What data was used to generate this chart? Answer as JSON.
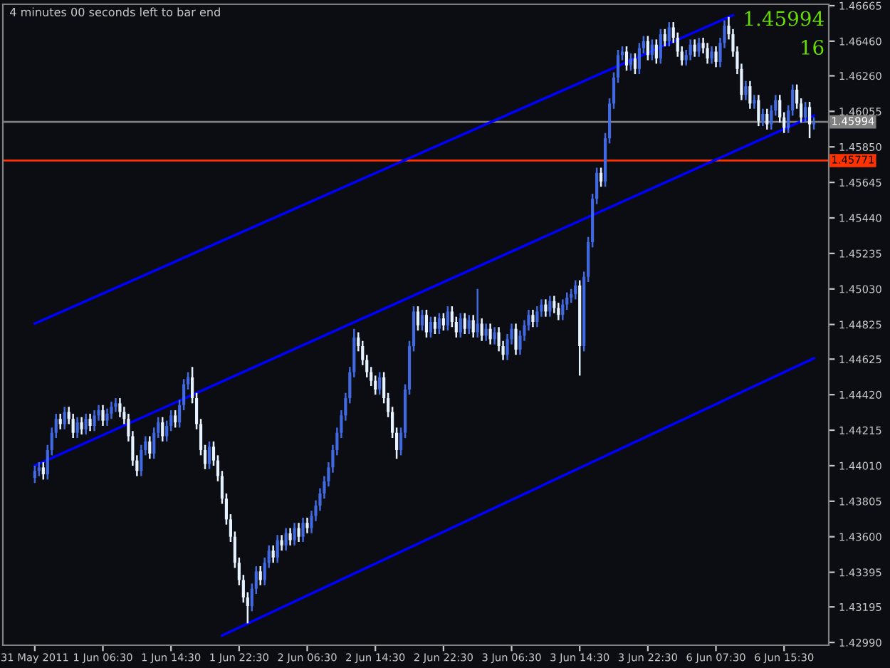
{
  "chart_data": {
    "type": "candlestick",
    "annotations": [
      "4 minutes 00 seconds left to bar end",
      "1.45994",
      "16"
    ],
    "categories": [
      "31 May 2011",
      null,
      null,
      null,
      null,
      null,
      null,
      null,
      null,
      null,
      null,
      null,
      null,
      null,
      null,
      null,
      "1 Jun 06:30",
      null,
      null,
      null,
      null,
      null,
      null,
      null,
      null,
      null,
      null,
      null,
      null,
      null,
      null,
      null,
      "1 Jun 14:30",
      null,
      null,
      null,
      null,
      null,
      null,
      null,
      null,
      null,
      null,
      null,
      null,
      null,
      null,
      null,
      "1 Jun 22:30",
      null,
      null,
      null,
      null,
      null,
      null,
      null,
      null,
      null,
      null,
      null,
      null,
      null,
      null,
      null,
      "2 Jun 06:30",
      null,
      null,
      null,
      null,
      null,
      null,
      null,
      null,
      null,
      null,
      null,
      null,
      null,
      null,
      null,
      "2 Jun 14:30",
      null,
      null,
      null,
      null,
      null,
      null,
      null,
      null,
      null,
      null,
      null,
      null,
      null,
      null,
      null,
      "2 Jun 22:30",
      null,
      null,
      null,
      null,
      null,
      null,
      null,
      null,
      null,
      null,
      null,
      null,
      null,
      null,
      null,
      "3 Jun 06:30",
      null,
      null,
      null,
      null,
      null,
      null,
      null,
      null,
      null,
      null,
      null,
      null,
      null,
      null,
      null,
      "3 Jun 14:30",
      null,
      null,
      null,
      null,
      null,
      null,
      null,
      null,
      null,
      null,
      null,
      null,
      null,
      null,
      null,
      "3 Jun 22:30",
      null,
      null,
      null,
      null,
      null,
      null,
      null,
      null,
      null,
      null,
      null,
      null,
      null,
      null,
      null,
      "6 Jun 07:30",
      null,
      null,
      null,
      null,
      null,
      null,
      null,
      null,
      null,
      null,
      null,
      null,
      null,
      null,
      null,
      "6 Jun 15:30",
      null,
      null,
      null,
      null,
      null,
      null,
      null
    ],
    "ohlc": [
      [
        1.4394,
        1.4401,
        1.4391,
        1.4398
      ],
      [
        1.4398,
        1.4403,
        1.4395,
        1.44
      ],
      [
        1.44,
        1.4403,
        1.4393,
        1.4396
      ],
      [
        1.4396,
        1.4413,
        1.4393,
        1.441
      ],
      [
        1.441,
        1.4423,
        1.4407,
        1.442
      ],
      [
        1.442,
        1.4431,
        1.4417,
        1.4428
      ],
      [
        1.4428,
        1.4431,
        1.4422,
        1.4425
      ],
      [
        1.4425,
        1.4435,
        1.4422,
        1.4432
      ],
      [
        1.4432,
        1.4435,
        1.4425,
        1.4428
      ],
      [
        1.4428,
        1.4431,
        1.4417,
        1.442
      ],
      [
        1.442,
        1.4429,
        1.4417,
        1.4426
      ],
      [
        1.4426,
        1.4429,
        1.4419,
        1.4422
      ],
      [
        1.4422,
        1.4431,
        1.4419,
        1.4428
      ],
      [
        1.4428,
        1.4431,
        1.4421,
        1.4424
      ],
      [
        1.4424,
        1.4433,
        1.4421,
        1.443
      ],
      [
        1.443,
        1.4436,
        1.4427,
        1.4433
      ],
      [
        1.4433,
        1.4436,
        1.4424,
        1.4427
      ],
      [
        1.4427,
        1.4434,
        1.4424,
        1.4431
      ],
      [
        1.4431,
        1.4438,
        1.4428,
        1.4435
      ],
      [
        1.4435,
        1.444,
        1.4432,
        1.4437
      ],
      [
        1.4437,
        1.444,
        1.4429,
        1.4432
      ],
      [
        1.4432,
        1.4435,
        1.4425,
        1.4428
      ],
      [
        1.4428,
        1.4431,
        1.4415,
        1.4418
      ],
      [
        1.4418,
        1.4421,
        1.4401,
        1.4404
      ],
      [
        1.4404,
        1.4407,
        1.4395,
        1.4398
      ],
      [
        1.4398,
        1.4413,
        1.4395,
        1.441
      ],
      [
        1.441,
        1.4418,
        1.4407,
        1.4415
      ],
      [
        1.4415,
        1.4418,
        1.4405,
        1.4408
      ],
      [
        1.4408,
        1.4423,
        1.4405,
        1.442
      ],
      [
        1.442,
        1.4429,
        1.4417,
        1.4426
      ],
      [
        1.4426,
        1.4429,
        1.4415,
        1.4418
      ],
      [
        1.4418,
        1.4427,
        1.4415,
        1.4424
      ],
      [
        1.4424,
        1.4433,
        1.4421,
        1.443
      ],
      [
        1.443,
        1.4433,
        1.4423,
        1.4426
      ],
      [
        1.4426,
        1.4439,
        1.4423,
        1.4436
      ],
      [
        1.4436,
        1.4451,
        1.4433,
        1.4448
      ],
      [
        1.4448,
        1.4455,
        1.4445,
        1.4452
      ],
      [
        1.4452,
        1.4458,
        1.4437,
        1.444
      ],
      [
        1.444,
        1.4443,
        1.4422,
        1.4425
      ],
      [
        1.4425,
        1.4428,
        1.4407,
        1.441
      ],
      [
        1.441,
        1.4413,
        1.4399,
        1.4402
      ],
      [
        1.4402,
        1.4415,
        1.4399,
        1.4412
      ],
      [
        1.4412,
        1.4415,
        1.4401,
        1.4404
      ],
      [
        1.4404,
        1.4407,
        1.4392,
        1.4395
      ],
      [
        1.4395,
        1.4398,
        1.4379,
        1.4382
      ],
      [
        1.4382,
        1.4385,
        1.4367,
        1.437
      ],
      [
        1.437,
        1.4373,
        1.4357,
        1.436
      ],
      [
        1.436,
        1.4363,
        1.4342,
        1.4345
      ],
      [
        1.4345,
        1.4348,
        1.4332,
        1.4335
      ],
      [
        1.4335,
        1.4338,
        1.4322,
        1.4325
      ],
      [
        1.4325,
        1.4328,
        1.431,
        1.432
      ],
      [
        1.432,
        1.4333,
        1.4317,
        1.433
      ],
      [
        1.433,
        1.4343,
        1.4327,
        1.434
      ],
      [
        1.434,
        1.4343,
        1.4332,
        1.4335
      ],
      [
        1.4335,
        1.4348,
        1.4332,
        1.4345
      ],
      [
        1.4345,
        1.4355,
        1.4342,
        1.4352
      ],
      [
        1.4352,
        1.4355,
        1.4345,
        1.4348
      ],
      [
        1.4348,
        1.4361,
        1.4345,
        1.4358
      ],
      [
        1.4358,
        1.4361,
        1.4352,
        1.4355
      ],
      [
        1.4355,
        1.4365,
        1.4352,
        1.4362
      ],
      [
        1.4362,
        1.4365,
        1.4355,
        1.4358
      ],
      [
        1.4358,
        1.4368,
        1.4355,
        1.4365
      ],
      [
        1.4365,
        1.4368,
        1.4357,
        1.436
      ],
      [
        1.436,
        1.4371,
        1.4357,
        1.4368
      ],
      [
        1.4368,
        1.4371,
        1.4362,
        1.4365
      ],
      [
        1.4365,
        1.4375,
        1.4362,
        1.4372
      ],
      [
        1.4372,
        1.4381,
        1.4369,
        1.4378
      ],
      [
        1.4378,
        1.4388,
        1.4375,
        1.4385
      ],
      [
        1.4385,
        1.4395,
        1.4382,
        1.4392
      ],
      [
        1.4392,
        1.4403,
        1.4389,
        1.44
      ],
      [
        1.44,
        1.4413,
        1.4397,
        1.441
      ],
      [
        1.441,
        1.4423,
        1.4407,
        1.442
      ],
      [
        1.442,
        1.4433,
        1.4417,
        1.443
      ],
      [
        1.443,
        1.4443,
        1.4427,
        1.444
      ],
      [
        1.444,
        1.4458,
        1.4437,
        1.4455
      ],
      [
        1.4455,
        1.448,
        1.4452,
        1.4475
      ],
      [
        1.4475,
        1.4478,
        1.4467,
        1.447
      ],
      [
        1.447,
        1.4473,
        1.4459,
        1.4462
      ],
      [
        1.4462,
        1.4465,
        1.4452,
        1.4455
      ],
      [
        1.4455,
        1.4458,
        1.4447,
        1.445
      ],
      [
        1.445,
        1.4453,
        1.4442,
        1.4445
      ],
      [
        1.4445,
        1.4455,
        1.4442,
        1.4452
      ],
      [
        1.4452,
        1.4455,
        1.4437,
        1.444
      ],
      [
        1.444,
        1.4443,
        1.4429,
        1.4432
      ],
      [
        1.4432,
        1.4435,
        1.4417,
        1.442
      ],
      [
        1.442,
        1.4423,
        1.4405,
        1.441
      ],
      [
        1.441,
        1.4423,
        1.4407,
        1.442
      ],
      [
        1.442,
        1.4448,
        1.4417,
        1.4445
      ],
      [
        1.4445,
        1.4473,
        1.4442,
        1.447
      ],
      [
        1.447,
        1.4493,
        1.4467,
        1.449
      ],
      [
        1.449,
        1.4493,
        1.4479,
        1.4482
      ],
      [
        1.4482,
        1.4491,
        1.4479,
        1.4488
      ],
      [
        1.4488,
        1.4491,
        1.4475,
        1.4478
      ],
      [
        1.4478,
        1.4487,
        1.4475,
        1.4484
      ],
      [
        1.4484,
        1.4487,
        1.4477,
        1.448
      ],
      [
        1.448,
        1.4489,
        1.4477,
        1.4486
      ],
      [
        1.4486,
        1.4489,
        1.4479,
        1.4482
      ],
      [
        1.4482,
        1.4493,
        1.4479,
        1.449
      ],
      [
        1.449,
        1.4493,
        1.4481,
        1.4484
      ],
      [
        1.4484,
        1.4487,
        1.4475,
        1.4478
      ],
      [
        1.4478,
        1.4489,
        1.4475,
        1.4486
      ],
      [
        1.4486,
        1.4489,
        1.4477,
        1.448
      ],
      [
        1.448,
        1.4488,
        1.4477,
        1.4485
      ],
      [
        1.4485,
        1.4488,
        1.4475,
        1.4478
      ],
      [
        1.4478,
        1.4503,
        1.4475,
        1.4483
      ],
      [
        1.4483,
        1.4486,
        1.4473,
        1.4476
      ],
      [
        1.4476,
        1.4483,
        1.4473,
        1.448
      ],
      [
        1.448,
        1.4483,
        1.4471,
        1.4474
      ],
      [
        1.4474,
        1.4481,
        1.4471,
        1.4478
      ],
      [
        1.4478,
        1.4481,
        1.4467,
        1.447
      ],
      [
        1.447,
        1.4473,
        1.4462,
        1.4465
      ],
      [
        1.4465,
        1.4477,
        1.4462,
        1.4474
      ],
      [
        1.4474,
        1.4483,
        1.4471,
        1.448
      ],
      [
        1.448,
        1.4483,
        1.4465,
        1.4468
      ],
      [
        1.4468,
        1.4479,
        1.4465,
        1.4476
      ],
      [
        1.4476,
        1.4485,
        1.4473,
        1.4482
      ],
      [
        1.4482,
        1.4491,
        1.4479,
        1.4488
      ],
      [
        1.4488,
        1.4491,
        1.4481,
        1.4484
      ],
      [
        1.4484,
        1.4493,
        1.4481,
        1.449
      ],
      [
        1.449,
        1.4497,
        1.4487,
        1.4494
      ],
      [
        1.4494,
        1.4497,
        1.4487,
        1.449
      ],
      [
        1.449,
        1.4499,
        1.4487,
        1.4496
      ],
      [
        1.4496,
        1.4499,
        1.4489,
        1.4492
      ],
      [
        1.4492,
        1.4495,
        1.4485,
        1.4488
      ],
      [
        1.4488,
        1.4497,
        1.4485,
        1.4494
      ],
      [
        1.4494,
        1.4501,
        1.4491,
        1.4498
      ],
      [
        1.4498,
        1.4503,
        1.4495,
        1.45
      ],
      [
        1.45,
        1.4508,
        1.4497,
        1.4505
      ],
      [
        1.4505,
        1.4508,
        1.4453,
        1.447
      ],
      [
        1.447,
        1.4513,
        1.4467,
        1.451
      ],
      [
        1.451,
        1.4533,
        1.4507,
        1.453
      ],
      [
        1.453,
        1.4558,
        1.4527,
        1.4555
      ],
      [
        1.4555,
        1.4573,
        1.4552,
        1.457
      ],
      [
        1.457,
        1.4573,
        1.4562,
        1.4565
      ],
      [
        1.4565,
        1.4593,
        1.4562,
        1.459
      ],
      [
        1.459,
        1.4613,
        1.4587,
        1.461
      ],
      [
        1.461,
        1.4628,
        1.4607,
        1.4625
      ],
      [
        1.4625,
        1.4641,
        1.4622,
        1.4638
      ],
      [
        1.4638,
        1.4643,
        1.4635,
        1.464
      ],
      [
        1.464,
        1.4643,
        1.4629,
        1.4632
      ],
      [
        1.4632,
        1.4639,
        1.4629,
        1.4636
      ],
      [
        1.4636,
        1.4639,
        1.4627,
        1.463
      ],
      [
        1.463,
        1.4645,
        1.4627,
        1.4642
      ],
      [
        1.4642,
        1.4649,
        1.4639,
        1.4646
      ],
      [
        1.4646,
        1.4649,
        1.4635,
        1.4638
      ],
      [
        1.4638,
        1.4647,
        1.4635,
        1.4644
      ],
      [
        1.4644,
        1.4647,
        1.4633,
        1.4636
      ],
      [
        1.4636,
        1.4653,
        1.4633,
        1.465
      ],
      [
        1.465,
        1.4653,
        1.4643,
        1.4646
      ],
      [
        1.4646,
        1.4657,
        1.4643,
        1.4654
      ],
      [
        1.4654,
        1.4657,
        1.4645,
        1.4648
      ],
      [
        1.4648,
        1.4651,
        1.4637,
        1.464
      ],
      [
        1.464,
        1.4643,
        1.4632,
        1.4635
      ],
      [
        1.4635,
        1.4641,
        1.4632,
        1.4638
      ],
      [
        1.4638,
        1.4647,
        1.4635,
        1.4644
      ],
      [
        1.4644,
        1.4647,
        1.4637,
        1.464
      ],
      [
        1.464,
        1.4648,
        1.4637,
        1.4645
      ],
      [
        1.4645,
        1.4648,
        1.4639,
        1.4642
      ],
      [
        1.4642,
        1.4645,
        1.4633,
        1.4636
      ],
      [
        1.4636,
        1.4643,
        1.4633,
        1.464
      ],
      [
        1.464,
        1.4643,
        1.4631,
        1.4634
      ],
      [
        1.4634,
        1.4648,
        1.4631,
        1.4645
      ],
      [
        1.4645,
        1.4658,
        1.4642,
        1.4655
      ],
      [
        1.4655,
        1.466,
        1.4647,
        1.465
      ],
      [
        1.465,
        1.4653,
        1.4637,
        1.464
      ],
      [
        1.464,
        1.4643,
        1.4627,
        1.463
      ],
      [
        1.463,
        1.4633,
        1.4612,
        1.4615
      ],
      [
        1.4615,
        1.4623,
        1.4612,
        1.462
      ],
      [
        1.462,
        1.4623,
        1.4607,
        1.461
      ],
      [
        1.461,
        1.4615,
        1.4607,
        1.4612
      ],
      [
        1.4612,
        1.4615,
        1.4597,
        1.46
      ],
      [
        1.46,
        1.4607,
        1.4597,
        1.4604
      ],
      [
        1.4604,
        1.4607,
        1.4595,
        1.4598
      ],
      [
        1.4598,
        1.4609,
        1.4595,
        1.4606
      ],
      [
        1.4606,
        1.4615,
        1.4603,
        1.4612
      ],
      [
        1.4612,
        1.4615,
        1.4599,
        1.4602
      ],
      [
        1.4602,
        1.4605,
        1.4593,
        1.4596
      ],
      [
        1.4596,
        1.4609,
        1.4593,
        1.4606
      ],
      [
        1.4606,
        1.4621,
        1.4603,
        1.4618
      ],
      [
        1.4618,
        1.4621,
        1.4607,
        1.461
      ],
      [
        1.461,
        1.4613,
        1.4599,
        1.4602
      ],
      [
        1.4602,
        1.4611,
        1.4599,
        1.4608
      ],
      [
        1.4608,
        1.4611,
        1.459,
        1.4598
      ],
      [
        1.4598,
        1.4602,
        1.4595,
        1.4599
      ]
    ],
    "colors": [
      "#4169e1",
      "#4169e1",
      "#e6f2ff",
      "#4169e1",
      "#4169e1",
      "#4169e1",
      "#e6f2ff",
      "#4169e1",
      "#e6f2ff",
      "#e6f2ff",
      "#4169e1",
      "#e6f2ff",
      "#4169e1",
      "#e6f2ff",
      "#4169e1",
      "#4169e1",
      "#e6f2ff",
      "#4169e1",
      "#4169e1",
      "#4169e1",
      "#e6f2ff",
      "#e6f2ff",
      "#e6f2ff",
      "#e6f2ff",
      "#e6f2ff",
      "#4169e1",
      "#4169e1",
      "#e6f2ff",
      "#4169e1",
      "#4169e1",
      "#e6f2ff",
      "#4169e1",
      "#4169e1",
      "#e6f2ff",
      "#4169e1",
      "#4169e1",
      "#4169e1",
      "#e6f2ff",
      "#e6f2ff",
      "#e6f2ff",
      "#e6f2ff",
      "#4169e1",
      "#e6f2ff",
      "#e6f2ff",
      "#e6f2ff",
      "#e6f2ff",
      "#e6f2ff",
      "#e6f2ff",
      "#e6f2ff",
      "#e6f2ff",
      "#e6f2ff",
      "#4169e1",
      "#4169e1",
      "#e6f2ff",
      "#4169e1",
      "#4169e1",
      "#e6f2ff",
      "#4169e1",
      "#e6f2ff",
      "#4169e1",
      "#e6f2ff",
      "#4169e1",
      "#e6f2ff",
      "#4169e1",
      "#e6f2ff",
      "#4169e1",
      "#4169e1",
      "#4169e1",
      "#4169e1",
      "#4169e1",
      "#4169e1",
      "#4169e1",
      "#4169e1",
      "#4169e1",
      "#4169e1",
      "#4169e1",
      "#e6f2ff",
      "#e6f2ff",
      "#e6f2ff",
      "#e6f2ff",
      "#e6f2ff",
      "#4169e1",
      "#e6f2ff",
      "#e6f2ff",
      "#e6f2ff",
      "#e6f2ff",
      "#4169e1",
      "#4169e1",
      "#4169e1",
      "#4169e1",
      "#e6f2ff",
      "#4169e1",
      "#e6f2ff",
      "#4169e1",
      "#e6f2ff",
      "#4169e1",
      "#e6f2ff",
      "#4169e1",
      "#e6f2ff",
      "#e6f2ff",
      "#4169e1",
      "#e6f2ff",
      "#4169e1",
      "#e6f2ff",
      "#4169e1",
      "#e6f2ff",
      "#4169e1",
      "#e6f2ff",
      "#4169e1",
      "#e6f2ff",
      "#e6f2ff",
      "#4169e1",
      "#4169e1",
      "#e6f2ff",
      "#4169e1",
      "#4169e1",
      "#4169e1",
      "#e6f2ff",
      "#4169e1",
      "#4169e1",
      "#e6f2ff",
      "#4169e1",
      "#e6f2ff",
      "#e6f2ff",
      "#4169e1",
      "#4169e1",
      "#4169e1",
      "#4169e1",
      "#e6f2ff",
      "#4169e1",
      "#4169e1",
      "#4169e1",
      "#4169e1",
      "#e6f2ff",
      "#4169e1",
      "#4169e1",
      "#4169e1",
      "#4169e1",
      "#4169e1",
      "#e6f2ff",
      "#4169e1",
      "#e6f2ff",
      "#4169e1",
      "#4169e1",
      "#e6f2ff",
      "#4169e1",
      "#e6f2ff",
      "#4169e1",
      "#e6f2ff",
      "#4169e1",
      "#e6f2ff",
      "#e6f2ff",
      "#e6f2ff",
      "#4169e1",
      "#4169e1",
      "#e6f2ff",
      "#4169e1",
      "#e6f2ff",
      "#e6f2ff",
      "#4169e1",
      "#e6f2ff",
      "#4169e1",
      "#4169e1",
      "#e6f2ff",
      "#e6f2ff",
      "#e6f2ff",
      "#e6f2ff",
      "#4169e1",
      "#e6f2ff",
      "#4169e1",
      "#e6f2ff",
      "#4169e1",
      "#e6f2ff",
      "#4169e1",
      "#4169e1",
      "#e6f2ff",
      "#e6f2ff",
      "#4169e1",
      "#4169e1",
      "#e6f2ff",
      "#e6f2ff",
      "#4169e1",
      "#e6f2ff",
      "#4169e1"
    ],
    "series": [
      {
        "type": "line",
        "color": "#0000ff",
        "values": [
          1.4483,
          null,
          null,
          null,
          null,
          null,
          null,
          null,
          null,
          null,
          null,
          null,
          null,
          null,
          null,
          null,
          null,
          null,
          null,
          null,
          null,
          null,
          null,
          null,
          null,
          null,
          null,
          null,
          null,
          null,
          null,
          null,
          null,
          null,
          null,
          null,
          null,
          null,
          null,
          null,
          null,
          null,
          null,
          null,
          null,
          null,
          null,
          null,
          null,
          null,
          null,
          null,
          null,
          null,
          null,
          null,
          null,
          null,
          null,
          null,
          null,
          null,
          null,
          null,
          null,
          null,
          null,
          null,
          null,
          null,
          null,
          null,
          null,
          null,
          null,
          null,
          null,
          null,
          null,
          null,
          null,
          null,
          null,
          null,
          null,
          null,
          null,
          null,
          null,
          null,
          null,
          null,
          null,
          null,
          null,
          null,
          null,
          null,
          null,
          null,
          null,
          null,
          null,
          null,
          null,
          null,
          null,
          null,
          null,
          null,
          null,
          null,
          null,
          null,
          null,
          null,
          null,
          null,
          null,
          null,
          null,
          null,
          null,
          null,
          null,
          null,
          null,
          null,
          null,
          null,
          null,
          null,
          null,
          null,
          null,
          null,
          null,
          null,
          null,
          null,
          null,
          null,
          null,
          null,
          null,
          null,
          null,
          null,
          null,
          null,
          null,
          null,
          null,
          null,
          null,
          null,
          null,
          null,
          null,
          null,
          null,
          null,
          null,
          null,
          1.4661,
          null,
          null,
          null,
          null,
          null,
          null,
          null,
          null,
          null,
          null,
          null,
          null,
          null,
          null,
          null,
          null,
          null,
          null,
          null
        ]
      },
      {
        "type": "line",
        "color": "#0000ff",
        "values": [
          1.4401,
          null,
          null,
          null,
          null,
          null,
          null,
          null,
          null,
          null,
          null,
          null,
          null,
          null,
          null,
          null,
          null,
          null,
          null,
          null,
          null,
          null,
          null,
          null,
          null,
          null,
          null,
          null,
          null,
          null,
          null,
          null,
          null,
          null,
          null,
          null,
          null,
          null,
          null,
          null,
          null,
          null,
          null,
          null,
          null,
          null,
          null,
          null,
          null,
          null,
          null,
          null,
          null,
          null,
          null,
          null,
          null,
          null,
          null,
          null,
          null,
          null,
          null,
          null,
          null,
          null,
          null,
          null,
          null,
          null,
          null,
          null,
          null,
          null,
          null,
          null,
          null,
          null,
          null,
          null,
          null,
          null,
          null,
          null,
          null,
          null,
          null,
          null,
          null,
          null,
          null,
          null,
          null,
          null,
          null,
          null,
          null,
          null,
          null,
          null,
          null,
          null,
          null,
          null,
          null,
          null,
          null,
          null,
          null,
          null,
          null,
          null,
          null,
          null,
          null,
          null,
          null,
          null,
          null,
          null,
          null,
          null,
          null,
          null,
          null,
          null,
          null,
          null,
          null,
          null,
          null,
          null,
          null,
          null,
          null,
          null,
          null,
          null,
          null,
          null,
          null,
          null,
          null,
          null,
          null,
          null,
          null,
          null,
          null,
          null,
          null,
          null,
          null,
          null,
          null,
          null,
          null,
          null,
          null,
          null,
          null,
          null,
          null,
          null,
          null,
          null,
          null,
          null,
          null,
          null,
          null,
          null,
          null,
          null,
          null,
          null,
          null,
          null,
          null,
          null,
          null,
          null,
          null,
          1.4603
        ]
      },
      {
        "type": "line",
        "color": "#0000ff",
        "values": [
          null,
          null,
          null,
          null,
          null,
          null,
          null,
          null,
          null,
          null,
          null,
          null,
          null,
          null,
          null,
          null,
          null,
          null,
          null,
          null,
          null,
          null,
          null,
          null,
          null,
          null,
          null,
          null,
          null,
          null,
          null,
          null,
          null,
          null,
          null,
          null,
          null,
          null,
          null,
          null,
          null,
          null,
          null,
          null,
          1.4303,
          null,
          null,
          null,
          null,
          null,
          null,
          null,
          null,
          null,
          null,
          null,
          null,
          null,
          null,
          null,
          null,
          null,
          null,
          null,
          null,
          null,
          null,
          null,
          null,
          null,
          null,
          null,
          null,
          null,
          null,
          null,
          null,
          null,
          null,
          null,
          null,
          null,
          null,
          null,
          null,
          null,
          null,
          null,
          null,
          null,
          null,
          null,
          null,
          null,
          null,
          null,
          null,
          null,
          null,
          null,
          null,
          null,
          null,
          null,
          null,
          null,
          null,
          null,
          null,
          null,
          null,
          null,
          null,
          null,
          null,
          null,
          null,
          null,
          null,
          null,
          null,
          null,
          null,
          null,
          null,
          null,
          null,
          null,
          null,
          null,
          null,
          null,
          null,
          null,
          null,
          null,
          null,
          null,
          null,
          null,
          null,
          null,
          null,
          null,
          null,
          null,
          null,
          null,
          null,
          null,
          null,
          null,
          null,
          null,
          null,
          null,
          null,
          null,
          null,
          null,
          null,
          null,
          null,
          null,
          null,
          null,
          null,
          null,
          null,
          null,
          null,
          null,
          null,
          null,
          null,
          null,
          null,
          null,
          null,
          null,
          null,
          null,
          null,
          1.4463
        ]
      }
    ],
    "ref_lines": [
      {
        "axis": "y",
        "value": 1.45994,
        "label": "1.45994",
        "color": "#808080"
      },
      {
        "axis": "y",
        "value": 1.45771,
        "label": "1.45771",
        "color": "#ff3300"
      }
    ],
    "ylim": [
      1.42974,
      1.46673
    ],
    "yticks": [
      {
        "value": 1.46665,
        "label": "1.46665"
      },
      {
        "value": 1.4646,
        "label": "1.46460"
      },
      {
        "value": 1.4626,
        "label": "1.46260"
      },
      {
        "value": 1.46055,
        "label": "1.46055"
      },
      {
        "value": 1.4585,
        "label": "1.45850"
      },
      {
        "value": 1.45645,
        "label": "1.45645"
      },
      {
        "value": 1.4544,
        "label": "1.45440"
      },
      {
        "value": 1.45235,
        "label": "1.45235"
      },
      {
        "value": 1.4503,
        "label": "1.45030"
      },
      {
        "value": 1.44825,
        "label": "1.44825"
      },
      {
        "value": 1.44625,
        "label": "1.44625"
      },
      {
        "value": 1.4442,
        "label": "1.44420"
      },
      {
        "value": 1.44215,
        "label": "1.44215"
      },
      {
        "value": 1.4401,
        "label": "1.44010"
      },
      {
        "value": 1.43805,
        "label": "1.43805"
      },
      {
        "value": 1.436,
        "label": "1.43600"
      },
      {
        "value": 1.43395,
        "label": "1.43395"
      },
      {
        "value": 1.43195,
        "label": "1.43195"
      },
      {
        "value": 1.4299,
        "label": "1.42990"
      }
    ]
  }
}
